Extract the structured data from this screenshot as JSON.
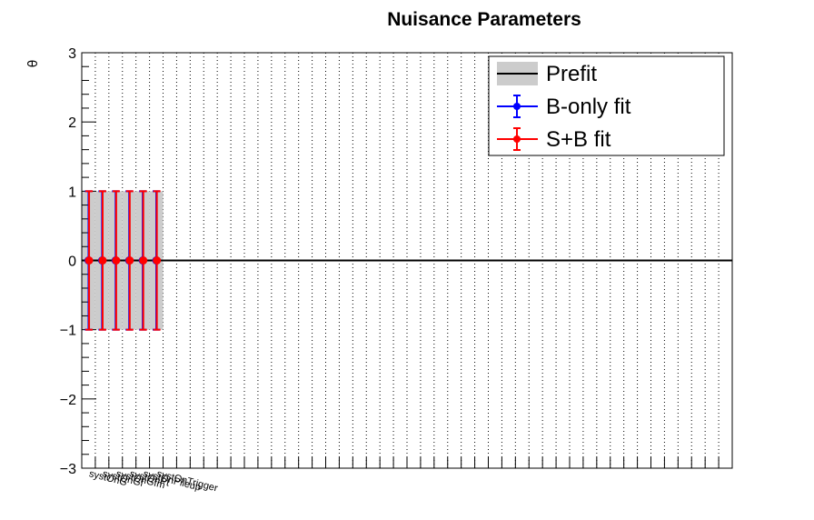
{
  "chart_data": {
    "type": "scatter",
    "title": "Nuisance Parameters",
    "xlabel": "",
    "ylabel": "θ",
    "ylim": [
      -3,
      3
    ],
    "yticks": [
      "3",
      "2",
      "1",
      "0",
      "−1",
      "−2",
      "−3"
    ],
    "categories": [
      "systOnG",
      "systOnGf",
      "systOnGfm",
      "systOnPt",
      "systOnPileup",
      "systOnTrigger"
    ],
    "n_bins": 48,
    "grid": true,
    "legend_position": "top-right",
    "legend": [
      "Prefit",
      "B-only fit",
      "S+B fit"
    ],
    "series": [
      {
        "name": "Prefit",
        "values": [
          0,
          0,
          0,
          0,
          0,
          0
        ],
        "err": [
          1,
          1,
          1,
          1,
          1,
          1
        ]
      },
      {
        "name": "B-only fit",
        "values": [
          0,
          0,
          0,
          0,
          0,
          0
        ],
        "err": [
          1,
          1,
          1,
          1,
          1,
          1
        ]
      },
      {
        "name": "S+B fit",
        "values": [
          0,
          0,
          0,
          0,
          0,
          0
        ],
        "err": [
          1,
          1,
          1,
          1,
          1,
          1
        ]
      }
    ]
  },
  "colors": {
    "prefit_band": "#cccccc",
    "prefit_line": "#000000",
    "bonly": "#0000ff",
    "sb": "#ff0000",
    "grid": "#000000"
  }
}
